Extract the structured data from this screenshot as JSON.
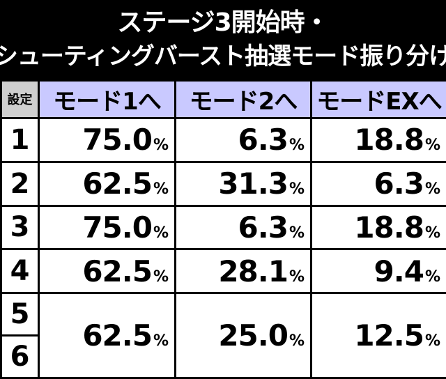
{
  "title": {
    "line1": "ステージ3開始時・",
    "line2": "シューティングバースト抽選モード振り分け"
  },
  "table": {
    "header": {
      "setting": "設定",
      "mode1": "モード1へ",
      "mode2": "モード2へ",
      "modeEX": "モードEXへ"
    },
    "rows": [
      {
        "setting": "1",
        "mode1": "75.0",
        "mode2": "6.3",
        "modeEX": "18.8"
      },
      {
        "setting": "2",
        "mode1": "62.5",
        "mode2": "31.3",
        "modeEX": "6.3"
      },
      {
        "setting": "3",
        "mode1": "75.0",
        "mode2": "6.3",
        "modeEX": "18.8"
      },
      {
        "setting": "4",
        "mode1": "62.5",
        "mode2": "28.1",
        "modeEX": "9.4"
      },
      {
        "setting": "5",
        "mode1": "62.5",
        "mode2": "25.0",
        "modeEX": "12.5"
      },
      {
        "setting": "6"
      }
    ],
    "percent_sign": "%"
  },
  "colors": {
    "header_mode_bg": "#c9c9ff",
    "header_setting_bg": "#cfcfcf",
    "cell_bg": "#ffffff",
    "border": "#000000"
  }
}
